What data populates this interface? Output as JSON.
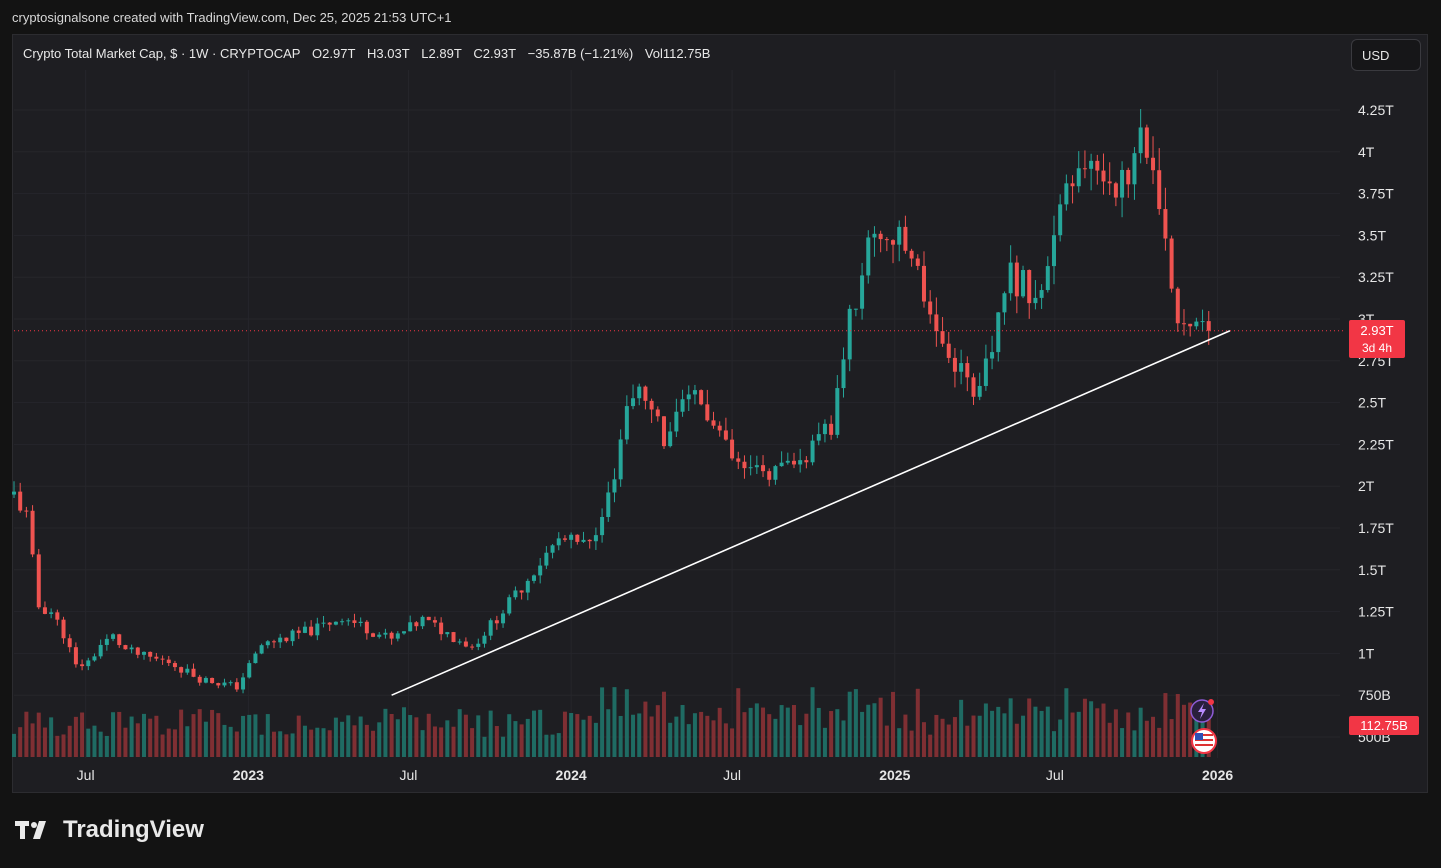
{
  "caption": "cryptosignalsone created with TradingView.com, Dec 25, 2025 21:53 UTC+1",
  "legend": {
    "symbol": "Crypto Total Market Cap, $ · 1W · CRYPTOCAP",
    "open": "O2.97T",
    "high": "H3.03T",
    "low": "L2.89T",
    "close": "C2.93T",
    "change": "−35.87B (−1.21%)",
    "volume": "Vol112.75B"
  },
  "currency_button": "USD",
  "brand": "TradingView",
  "price_tag": {
    "value": "2.93T",
    "countdown": "3d 4h"
  },
  "volume_tag": "112.75B",
  "colors": {
    "up": "#26a69a",
    "down": "#ef5350",
    "trendline": "#ffffff",
    "tag": "#f23645",
    "vol_up": "#1f6b63",
    "vol_down": "#7f2f33"
  },
  "icons": [
    "lightning-icon",
    "us-flag-icon"
  ],
  "chart_data": {
    "type": "candlestick",
    "title": "Crypto Total Market Cap, $ · 1W · CRYPTOCAP",
    "y_ticks": [
      "4.25T",
      "4T",
      "3.75T",
      "3.5T",
      "3.25T",
      "3T",
      "2.75T",
      "2.5T",
      "2.25T",
      "2T",
      "1.75T",
      "1.5T",
      "1.25T",
      "1T",
      "750B",
      "500B"
    ],
    "y_tick_values": [
      4.25,
      4.0,
      3.75,
      3.5,
      3.25,
      3.0,
      2.75,
      2.5,
      2.25,
      2.0,
      1.75,
      1.5,
      1.25,
      1.0,
      0.75,
      0.5
    ],
    "x_ticks": [
      "Jul",
      "2023",
      "Jul",
      "2024",
      "Jul",
      "2025",
      "Jul",
      "2026"
    ],
    "x_tick_dates": [
      "2022-07-01",
      "2023-01-01",
      "2023-07-01",
      "2024-01-01",
      "2024-07-01",
      "2025-01-01",
      "2025-07-01",
      "2026-01-01"
    ],
    "x_range": [
      "2022-04-11",
      "2026-02-01"
    ],
    "y_range_trillions": [
      0.42,
      4.4
    ],
    "unit": "trillion USD",
    "last_close": 2.93,
    "trendline": {
      "from": [
        "2023-06-12",
        0.75
      ],
      "to": [
        "2026-01-15",
        2.93
      ]
    },
    "weekly_close_approx": [
      {
        "date": "2022-04-11",
        "close": 1.95
      },
      {
        "date": "2022-04-25",
        "close": 1.82
      },
      {
        "date": "2022-05-09",
        "close": 1.28
      },
      {
        "date": "2022-05-23",
        "close": 1.25
      },
      {
        "date": "2022-06-06",
        "close": 1.12
      },
      {
        "date": "2022-06-20",
        "close": 0.92
      },
      {
        "date": "2022-07-04",
        "close": 0.95
      },
      {
        "date": "2022-07-18",
        "close": 1.05
      },
      {
        "date": "2022-08-01",
        "close": 1.1
      },
      {
        "date": "2022-08-15",
        "close": 1.02
      },
      {
        "date": "2022-09-05",
        "close": 0.98
      },
      {
        "date": "2022-10-03",
        "close": 0.95
      },
      {
        "date": "2022-11-07",
        "close": 0.85
      },
      {
        "date": "2022-12-19",
        "close": 0.8
      },
      {
        "date": "2023-01-16",
        "close": 1.05
      },
      {
        "date": "2023-03-20",
        "close": 1.15
      },
      {
        "date": "2023-04-17",
        "close": 1.22
      },
      {
        "date": "2023-06-12",
        "close": 1.08
      },
      {
        "date": "2023-07-17",
        "close": 1.2
      },
      {
        "date": "2023-09-11",
        "close": 1.04
      },
      {
        "date": "2023-10-23",
        "close": 1.3
      },
      {
        "date": "2023-11-20",
        "close": 1.5
      },
      {
        "date": "2023-12-18",
        "close": 1.68
      },
      {
        "date": "2024-01-22",
        "close": 1.64
      },
      {
        "date": "2024-02-19",
        "close": 2.1
      },
      {
        "date": "2024-03-11",
        "close": 2.6
      },
      {
        "date": "2024-04-15",
        "close": 2.3
      },
      {
        "date": "2024-05-20",
        "close": 2.55
      },
      {
        "date": "2024-07-08",
        "close": 2.1
      },
      {
        "date": "2024-08-05",
        "close": 2.08
      },
      {
        "date": "2024-09-09",
        "close": 2.1
      },
      {
        "date": "2024-10-21",
        "close": 2.35
      },
      {
        "date": "2024-11-11",
        "close": 3.0
      },
      {
        "date": "2024-12-09",
        "close": 3.55
      },
      {
        "date": "2025-01-20",
        "close": 3.4
      },
      {
        "date": "2025-02-24",
        "close": 2.85
      },
      {
        "date": "2025-04-07",
        "close": 2.55
      },
      {
        "date": "2025-05-12",
        "close": 3.25
      },
      {
        "date": "2025-06-16",
        "close": 3.15
      },
      {
        "date": "2025-07-14",
        "close": 3.75
      },
      {
        "date": "2025-08-11",
        "close": 3.9
      },
      {
        "date": "2025-09-22",
        "close": 3.8
      },
      {
        "date": "2025-10-06",
        "close": 4.2
      },
      {
        "date": "2025-10-27",
        "close": 3.6
      },
      {
        "date": "2025-11-17",
        "close": 3.0
      },
      {
        "date": "2025-12-08",
        "close": 3.05
      },
      {
        "date": "2025-12-22",
        "close": 2.93
      }
    ]
  }
}
